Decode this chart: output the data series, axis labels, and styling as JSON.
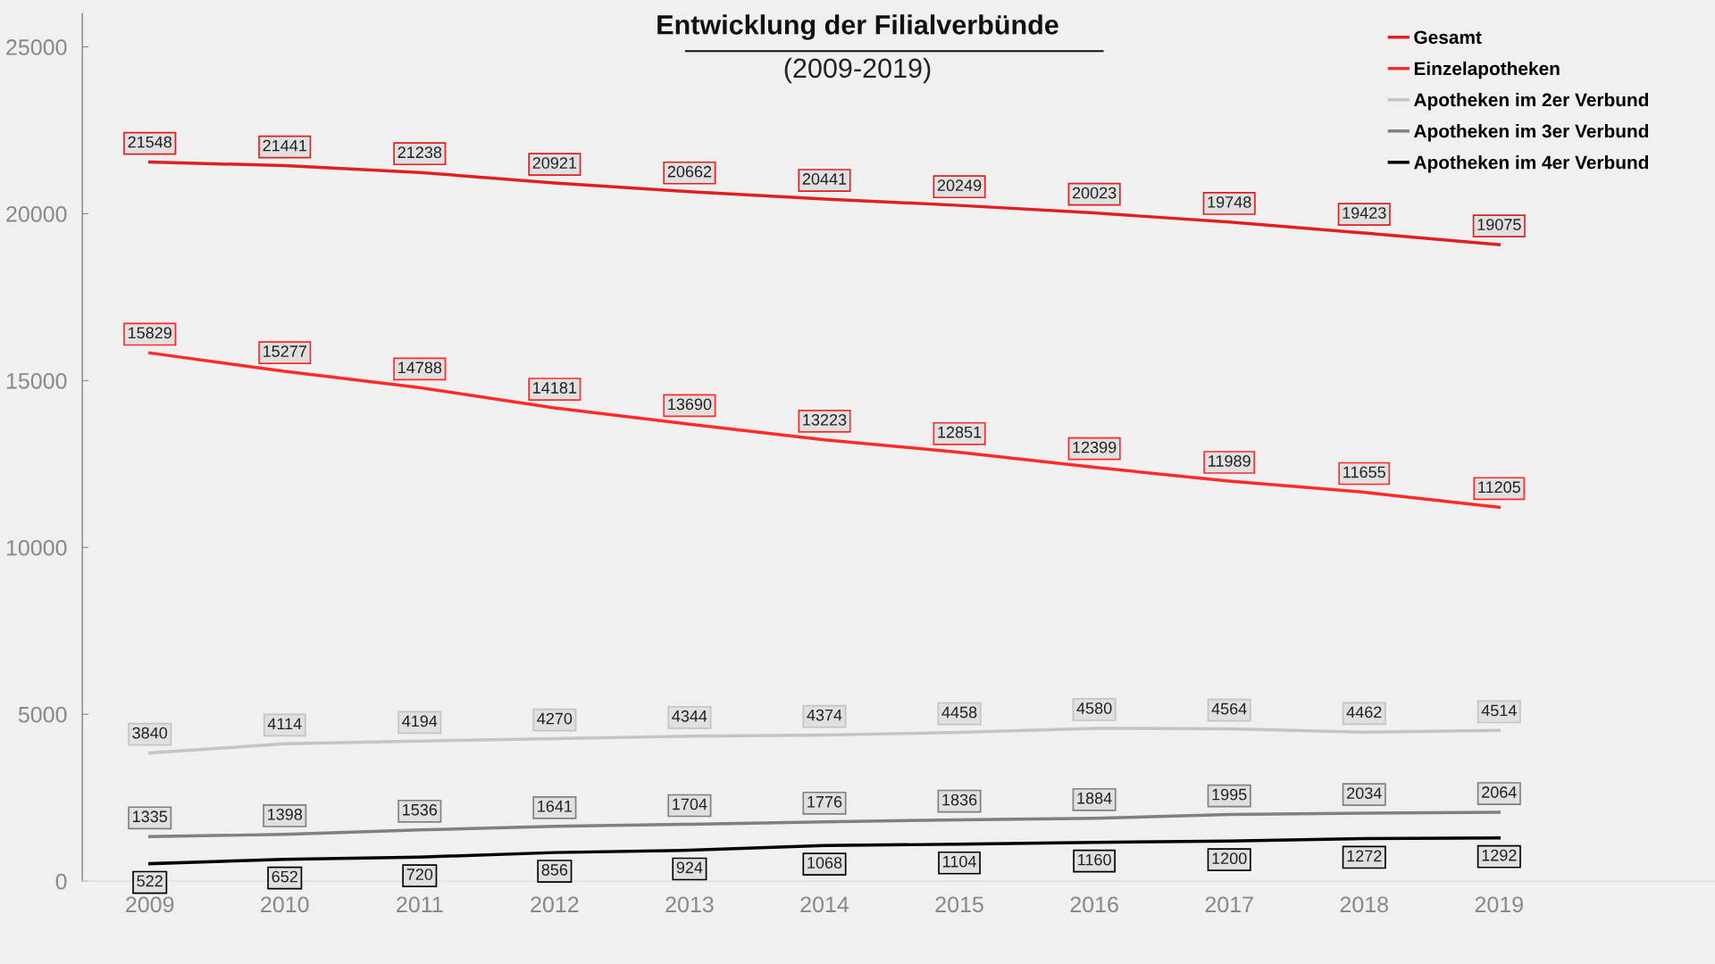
{
  "chart_data": {
    "type": "line",
    "title": "Entwicklung der Filialverbünde",
    "subtitle": "(2009-2019)",
    "categories": [
      "2009",
      "2010",
      "2011",
      "2012",
      "2013",
      "2014",
      "2015",
      "2016",
      "2017",
      "2018",
      "2019"
    ],
    "series": [
      {
        "name": "Gesamt",
        "color": "#e02020",
        "values": [
          21548,
          21441,
          21238,
          20921,
          20662,
          20441,
          20249,
          20023,
          19748,
          19423,
          19075
        ]
      },
      {
        "name": "Einzelapotheken",
        "color": "#ff2a2a",
        "values": [
          15829,
          15277,
          14788,
          14181,
          13690,
          13223,
          12851,
          12399,
          11989,
          11655,
          11205
        ]
      },
      {
        "name": "Apotheken im 2er Verbund",
        "color": "#c4c4c4",
        "values": [
          3840,
          4114,
          4194,
          4270,
          4344,
          4374,
          4458,
          4580,
          4564,
          4462,
          4514
        ]
      },
      {
        "name": "Apotheken im 3er Verbund",
        "color": "#808080",
        "values": [
          1335,
          1398,
          1536,
          1641,
          1704,
          1776,
          1836,
          1884,
          1995,
          2034,
          2064
        ]
      },
      {
        "name": "Apotheken im 4er Verbund",
        "color": "#000000",
        "values": [
          522,
          652,
          720,
          856,
          924,
          1068,
          1104,
          1160,
          1200,
          1272,
          1292
        ]
      }
    ],
    "ylim": [
      0,
      26000
    ],
    "yticks": [
      0,
      5000,
      10000,
      15000,
      20000,
      25000
    ],
    "grid": false,
    "legend": "top right",
    "line_style": "solid",
    "data_labels": true
  }
}
